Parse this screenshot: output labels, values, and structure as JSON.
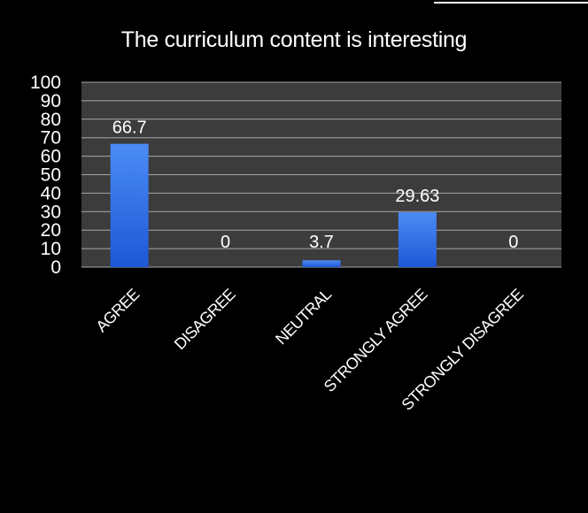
{
  "chart_data": {
    "type": "bar",
    "title": "The curriculum content is interesting",
    "categories": [
      "AGREE",
      "DISAGREE",
      "NEUTRAL",
      "STRONGLY AGREE",
      "STRONGLY DISAGREE"
    ],
    "values": [
      66.7,
      0,
      3.7,
      29.63,
      0
    ],
    "data_labels": [
      "66.7",
      "0",
      "3.7",
      "29.63",
      "0"
    ],
    "ylim": [
      0,
      100
    ],
    "yticks": [
      "0",
      "10",
      "20",
      "30",
      "40",
      "50",
      "60",
      "70",
      "80",
      "90",
      "100"
    ],
    "grid": true,
    "legend": "none",
    "colors": {
      "background": "#000000",
      "plot_area": "#3c3c3c",
      "gridline": "#a8a8a8",
      "bar_top": "#4b8cf5",
      "bar_bottom": "#1d58d6",
      "text": "#ffffff"
    }
  }
}
